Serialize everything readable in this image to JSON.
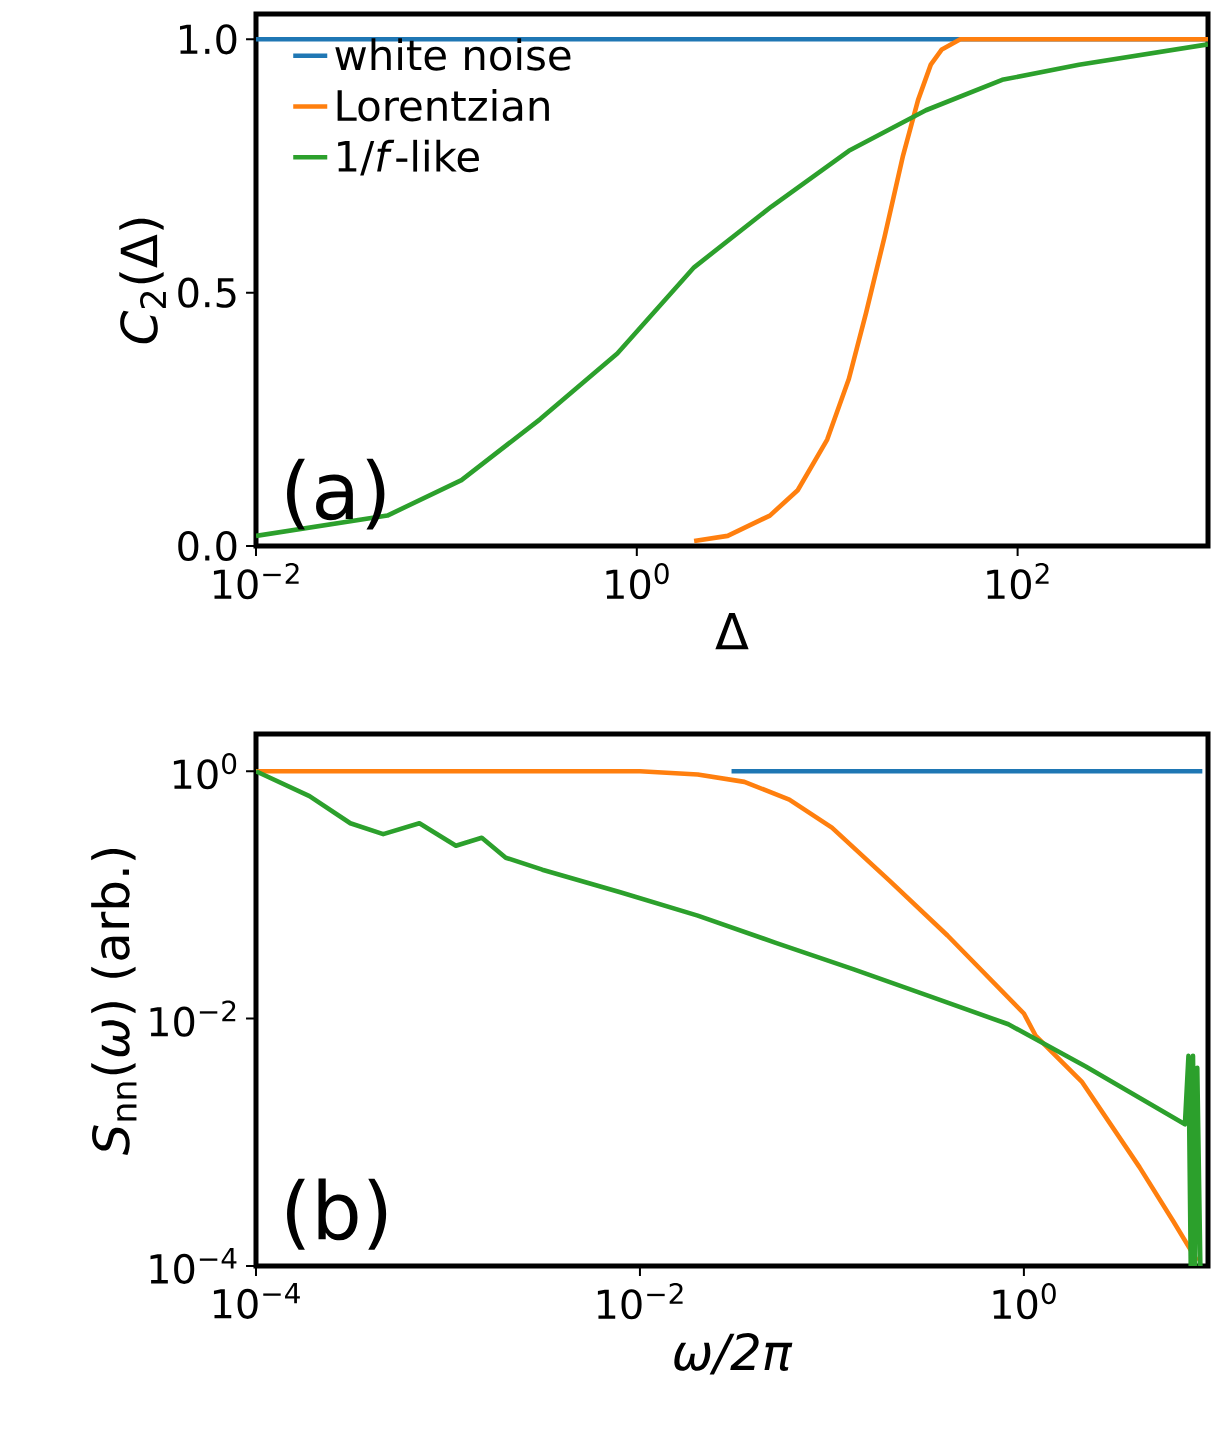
{
  "chart_data": [
    {
      "type": "line",
      "xlabel": "Δ",
      "ylabel": "*C*$_{2}$(Δ)",
      "log": "x",
      "legend": "top left",
      "xlim": [
        0.01,
        1000
      ],
      "ylim": [
        0,
        1.05
      ],
      "xticks": [
        {
          "value": 0.01,
          "label": "10$^{−2}$"
        },
        {
          "value": 1,
          "label": "10$^{0}$"
        },
        {
          "value": 100,
          "label": "10$^{2}$"
        }
      ],
      "yticks": [
        {
          "value": 0,
          "label": "0.0"
        },
        {
          "value": 0.5,
          "label": "0.5"
        },
        {
          "value": 1,
          "label": "1.0"
        }
      ],
      "annotations": [
        "(a)"
      ],
      "series": [
        {
          "name": "white noise",
          "color": "#1f77b4",
          "x": [
            0.01,
            1000
          ],
          "values": [
            1,
            1
          ]
        },
        {
          "name": "Lorentzian",
          "color": "#ff7f0e",
          "x": [
            2,
            3,
            5,
            7,
            10,
            13,
            16,
            20,
            25,
            30,
            35,
            40,
            50,
            70,
            1000
          ],
          "values": [
            0.01,
            0.02,
            0.06,
            0.11,
            0.21,
            0.33,
            0.46,
            0.61,
            0.77,
            0.88,
            0.95,
            0.98,
            1.0,
            1,
            1
          ]
        },
        {
          "name": "1/*f*-like",
          "color": "#2ca02c",
          "x": [
            0.01,
            0.049,
            0.12,
            0.31,
            0.79,
            2.0,
            5.1,
            13,
            33,
            83,
            210,
            1000
          ],
          "values": [
            0.02,
            0.06,
            0.13,
            0.25,
            0.38,
            0.55,
            0.67,
            0.78,
            0.86,
            0.92,
            0.95,
            0.99
          ]
        }
      ]
    },
    {
      "type": "line",
      "xlabel": "*ω/2π*",
      "ylabel": "*S*$_{nn}$(*ω*) (arb.)",
      "log": "xy",
      "xlim": [
        0.0001,
        9.1
      ],
      "ylim": [
        0.0001,
        2
      ],
      "xticks": [
        {
          "value": 0.0001,
          "label": "10$^{−4}$"
        },
        {
          "value": 0.01,
          "label": "10$^{−2}$"
        },
        {
          "value": 1,
          "label": "10$^{0}$"
        }
      ],
      "yticks": [
        {
          "value": 0.0001,
          "label": "10$^{−4}$"
        },
        {
          "value": 0.01,
          "label": "10$^{−2}$"
        },
        {
          "value": 1,
          "label": "10$^{0}$"
        }
      ],
      "annotations": [
        "(b)"
      ],
      "series": [
        {
          "color": "#1f77b4",
          "x": [
            0.03,
            8.5
          ],
          "values": [
            1,
            1
          ]
        },
        {
          "color": "#ff7f0e",
          "x": [
            0.0001,
            0.01,
            0.02,
            0.035,
            0.06,
            0.1,
            0.2,
            0.4,
            1,
            1.15,
            2,
            4,
            6,
            8
          ],
          "values": [
            1,
            1,
            0.94,
            0.82,
            0.59,
            0.35,
            0.13,
            0.047,
            0.011,
            0.0073,
            0.0031,
            0.00063,
            0.00023,
            0.00011
          ]
        },
        {
          "color": "#2ca02c",
          "x": [
            0.0001,
            0.00019,
            0.00031,
            0.00046,
            0.00071,
            0.0011,
            0.0015,
            0.002,
            0.0031,
            0.0079,
            0.02,
            0.051,
            0.13,
            0.33,
            0.83,
            2.1,
            6.9,
            7.2,
            7.4,
            7.6,
            7.8,
            8.0,
            8.3
          ],
          "values": [
            1,
            0.63,
            0.38,
            0.31,
            0.38,
            0.25,
            0.29,
            0.2,
            0.16,
            0.105,
            0.068,
            0.041,
            0.025,
            0.015,
            0.009,
            0.0041,
            0.0014,
            0.005,
            0.0001,
            0.005,
            0.0001,
            0.004,
            0.0001
          ]
        }
      ]
    }
  ]
}
